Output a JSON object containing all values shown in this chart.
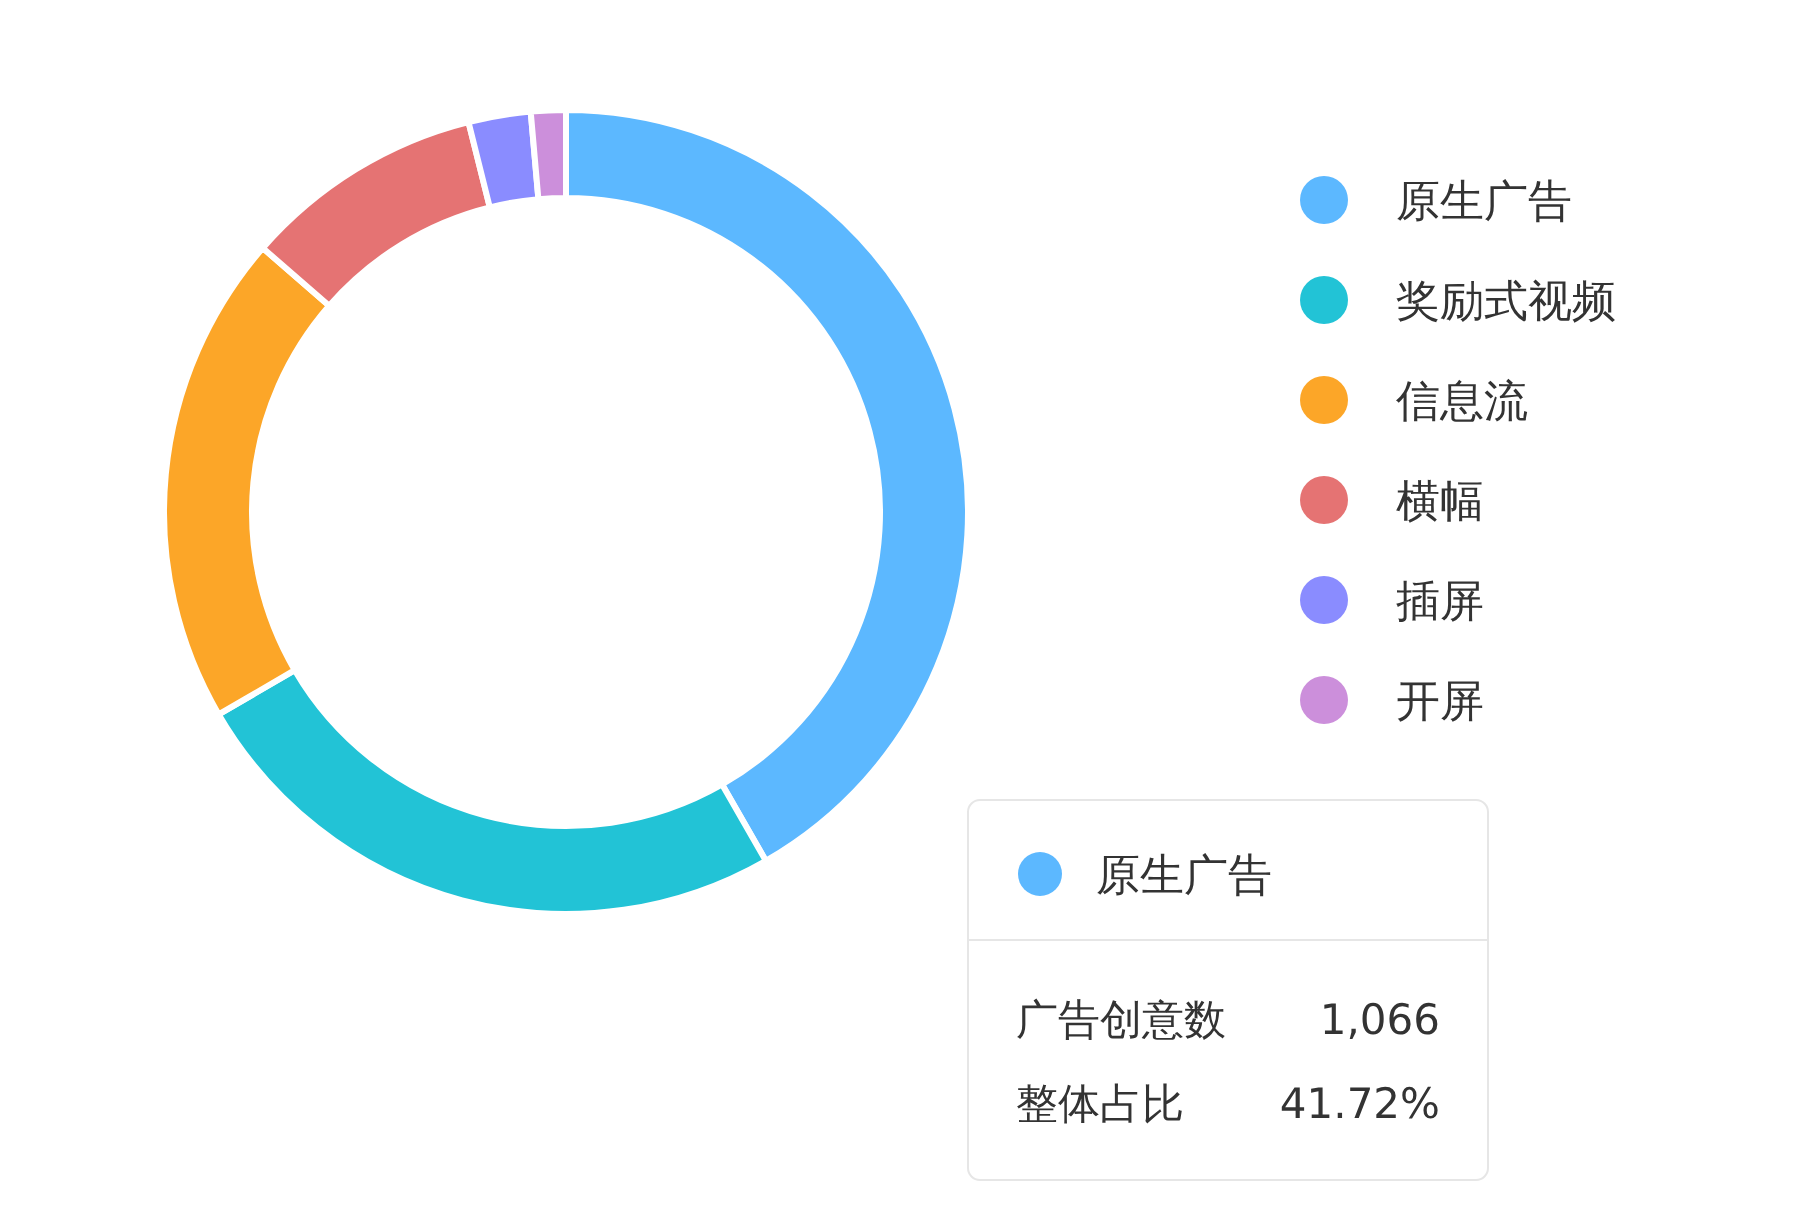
{
  "chart_data": {
    "type": "donut",
    "categories": [
      "原生广告",
      "奖励式视频",
      "信息流",
      "横幅",
      "插屏",
      "开屏"
    ],
    "values": [
      41.72,
      24.88,
      19.8,
      9.7,
      2.5,
      1.4
    ],
    "colors": [
      "#5cb8ff",
      "#22c3d6",
      "#fca628",
      "#e57373",
      "#8a8cff",
      "#cc8fdb"
    ],
    "legend": "right",
    "annotations": [
      "原生广告",
      "广告创意数",
      "1,066",
      "整体占比",
      "41.72%"
    ]
  }
}
